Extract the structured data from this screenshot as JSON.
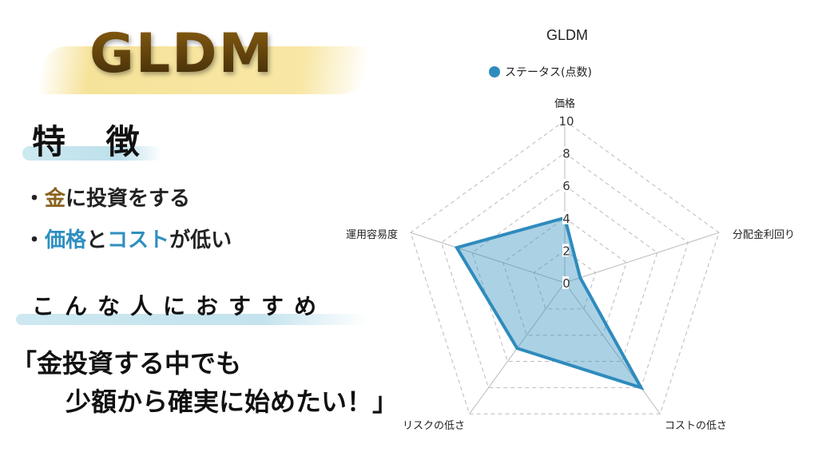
{
  "left": {
    "title": "GLDM",
    "features_heading": "特 徴",
    "bullets": [
      {
        "dot": "・",
        "highlight": "金",
        "rest": "に投資をする"
      },
      {
        "dot": "・",
        "highlight": "価格",
        "mid": "と",
        "highlight2": "コスト",
        "rest": "が低い"
      }
    ],
    "recommend_heading": "こんな人におすすめ",
    "quote_line1": "「金投資する中でも",
    "quote_line2": "少額から確実に始めたい！」"
  },
  "colors": {
    "series": "#2e8bbd",
    "fill": "rgba(46,139,189,0.4)",
    "gold": "#8a6320",
    "accent_blue": "#2e8fc0"
  },
  "chart_data": {
    "type": "radar",
    "title": "GLDM",
    "categories": [
      "価格",
      "分配金利回り",
      "コストの低さ",
      "リスクの低さ",
      "運用容易度"
    ],
    "series": [
      {
        "name": "ステータス(点数)",
        "values": [
          4,
          1,
          8,
          5,
          7
        ]
      }
    ],
    "rlim": [
      0,
      10
    ],
    "ticks": [
      "0",
      "2",
      "4",
      "6",
      "8",
      "10"
    ],
    "grid": true,
    "legend": "top"
  }
}
